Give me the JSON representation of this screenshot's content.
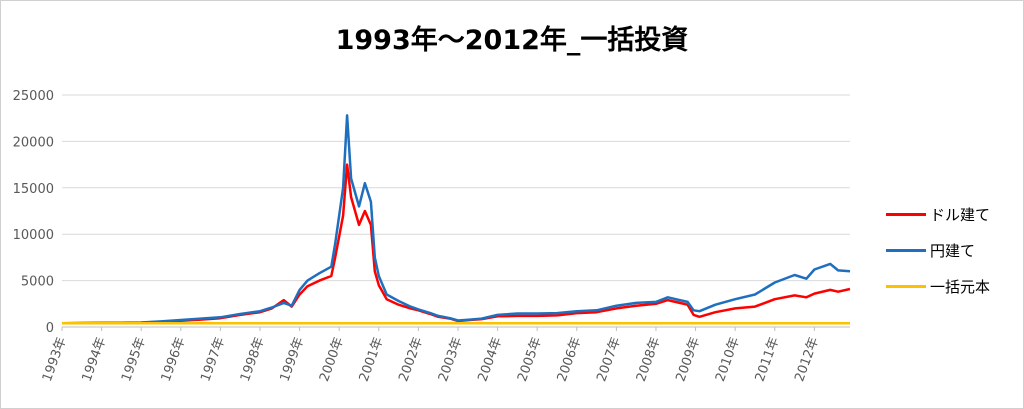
{
  "chart_data": {
    "type": "line",
    "title": "1993年～2012年_一括投資",
    "xlabel": "",
    "ylabel": "",
    "ylim": [
      0,
      25000
    ],
    "yticks": [
      0,
      5000,
      10000,
      15000,
      20000,
      25000
    ],
    "xlim": [
      1993,
      2012.9
    ],
    "xticks": [
      "1993年",
      "1994年",
      "1995年",
      "1996年",
      "1997年",
      "1998年",
      "1999年",
      "2000年",
      "2001年",
      "2002年",
      "2003年",
      "2004年",
      "2005年",
      "2006年",
      "2007年",
      "2008年",
      "2009年",
      "2010年",
      "2011年",
      "2012年"
    ],
    "grid": true,
    "legend_position": "right",
    "series": [
      {
        "name": "ドル建て",
        "color": "#ff0000",
        "points": [
          [
            1993.0,
            400
          ],
          [
            1993.5,
            420
          ],
          [
            1994.0,
            440
          ],
          [
            1994.5,
            450
          ],
          [
            1995.0,
            470
          ],
          [
            1995.5,
            560
          ],
          [
            1996.0,
            680
          ],
          [
            1996.5,
            800
          ],
          [
            1997.0,
            950
          ],
          [
            1997.5,
            1300
          ],
          [
            1998.0,
            1600
          ],
          [
            1998.3,
            2000
          ],
          [
            1998.6,
            2900
          ],
          [
            1998.8,
            2200
          ],
          [
            1999.0,
            3500
          ],
          [
            1999.2,
            4400
          ],
          [
            1999.5,
            5000
          ],
          [
            1999.8,
            5500
          ],
          [
            1999.9,
            7500
          ],
          [
            2000.1,
            12000
          ],
          [
            2000.2,
            17500
          ],
          [
            2000.3,
            14000
          ],
          [
            2000.5,
            11000
          ],
          [
            2000.65,
            12500
          ],
          [
            2000.8,
            11000
          ],
          [
            2000.9,
            6000
          ],
          [
            2001.0,
            4500
          ],
          [
            2001.2,
            3000
          ],
          [
            2001.5,
            2400
          ],
          [
            2001.8,
            2000
          ],
          [
            2002.0,
            1800
          ],
          [
            2002.3,
            1400
          ],
          [
            2002.5,
            1100
          ],
          [
            2002.8,
            900
          ],
          [
            2003.0,
            650
          ],
          [
            2003.3,
            750
          ],
          [
            2003.6,
            850
          ],
          [
            2004.0,
            1150
          ],
          [
            2004.5,
            1200
          ],
          [
            2005.0,
            1200
          ],
          [
            2005.5,
            1250
          ],
          [
            2006.0,
            1500
          ],
          [
            2006.5,
            1600
          ],
          [
            2007.0,
            2000
          ],
          [
            2007.5,
            2300
          ],
          [
            2008.0,
            2500
          ],
          [
            2008.3,
            2900
          ],
          [
            2008.6,
            2600
          ],
          [
            2008.8,
            2400
          ],
          [
            2008.95,
            1300
          ],
          [
            2009.1,
            1100
          ],
          [
            2009.5,
            1600
          ],
          [
            2010.0,
            2000
          ],
          [
            2010.5,
            2200
          ],
          [
            2011.0,
            3000
          ],
          [
            2011.5,
            3400
          ],
          [
            2011.8,
            3200
          ],
          [
            2012.0,
            3600
          ],
          [
            2012.4,
            4000
          ],
          [
            2012.6,
            3800
          ],
          [
            2012.9,
            4100
          ]
        ]
      },
      {
        "name": "円建て",
        "color": "#1f6fbf",
        "points": [
          [
            1993.0,
            400
          ],
          [
            1993.5,
            430
          ],
          [
            1994.0,
            440
          ],
          [
            1994.5,
            460
          ],
          [
            1995.0,
            480
          ],
          [
            1995.5,
            600
          ],
          [
            1996.0,
            750
          ],
          [
            1996.5,
            900
          ],
          [
            1997.0,
            1050
          ],
          [
            1997.5,
            1400
          ],
          [
            1998.0,
            1700
          ],
          [
            1998.3,
            2100
          ],
          [
            1998.6,
            2600
          ],
          [
            1998.8,
            2300
          ],
          [
            1999.0,
            4000
          ],
          [
            1999.2,
            5000
          ],
          [
            1999.5,
            5800
          ],
          [
            1999.8,
            6500
          ],
          [
            1999.9,
            9000
          ],
          [
            2000.1,
            15000
          ],
          [
            2000.2,
            22800
          ],
          [
            2000.3,
            16000
          ],
          [
            2000.5,
            13000
          ],
          [
            2000.65,
            15500
          ],
          [
            2000.8,
            13500
          ],
          [
            2000.9,
            7500
          ],
          [
            2001.0,
            5500
          ],
          [
            2001.2,
            3500
          ],
          [
            2001.5,
            2800
          ],
          [
            2001.8,
            2200
          ],
          [
            2002.0,
            1900
          ],
          [
            2002.3,
            1500
          ],
          [
            2002.5,
            1200
          ],
          [
            2002.8,
            950
          ],
          [
            2003.0,
            700
          ],
          [
            2003.3,
            800
          ],
          [
            2003.6,
            900
          ],
          [
            2004.0,
            1300
          ],
          [
            2004.5,
            1450
          ],
          [
            2005.0,
            1450
          ],
          [
            2005.5,
            1500
          ],
          [
            2006.0,
            1700
          ],
          [
            2006.5,
            1800
          ],
          [
            2007.0,
            2300
          ],
          [
            2007.5,
            2600
          ],
          [
            2008.0,
            2700
          ],
          [
            2008.3,
            3200
          ],
          [
            2008.6,
            2900
          ],
          [
            2008.8,
            2700
          ],
          [
            2008.95,
            1800
          ],
          [
            2009.1,
            1700
          ],
          [
            2009.5,
            2400
          ],
          [
            2010.0,
            3000
          ],
          [
            2010.5,
            3500
          ],
          [
            2011.0,
            4800
          ],
          [
            2011.5,
            5600
          ],
          [
            2011.8,
            5200
          ],
          [
            2012.0,
            6200
          ],
          [
            2012.4,
            6800
          ],
          [
            2012.6,
            6100
          ],
          [
            2012.9,
            6000
          ]
        ]
      },
      {
        "name": "一括元本",
        "color": "#ffc000",
        "points": [
          [
            1993.0,
            400
          ],
          [
            2012.9,
            400
          ]
        ]
      }
    ]
  }
}
